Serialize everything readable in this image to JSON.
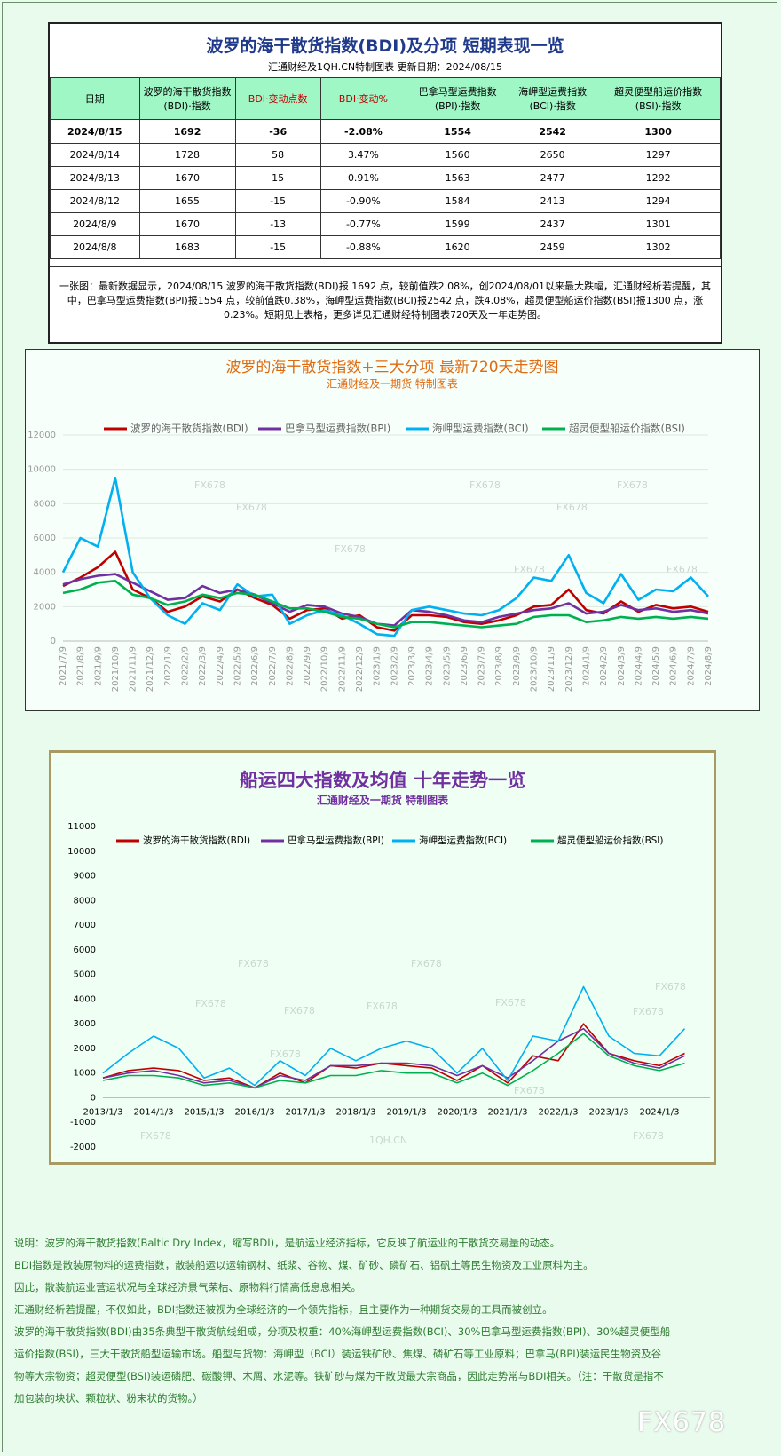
{
  "header": {
    "title": "波罗的海干散货指数(BDI)及分项  短期表现一览",
    "subtitle": "汇通财经及1QH.CN特制图表     更新日期：2024/08/15"
  },
  "table": {
    "columns": [
      "日期",
      "波罗的海干散货指数\n(BDI)·指数",
      "BDI·变动点数",
      "BDI·变动%",
      "巴拿马型运费指数\n(BPI)·指数",
      "海岬型运费指数\n(BCI)·指数",
      "超灵便型船运价指数\n(BSI)·指数"
    ],
    "rows": [
      [
        "2024/8/15",
        "1692",
        "-36",
        "-2.08%",
        "1554",
        "2542",
        "1300"
      ],
      [
        "2024/8/14",
        "1728",
        "58",
        "3.47%",
        "1560",
        "2650",
        "1297"
      ],
      [
        "2024/8/13",
        "1670",
        "15",
        "0.91%",
        "1563",
        "2477",
        "1292"
      ],
      [
        "2024/8/12",
        "1655",
        "-15",
        "-0.90%",
        "1584",
        "2413",
        "1294"
      ],
      [
        "2024/8/9",
        "1670",
        "-13",
        "-0.77%",
        "1599",
        "2437",
        "1301"
      ],
      [
        "2024/8/8",
        "1683",
        "-15",
        "-0.88%",
        "1620",
        "2459",
        "1302"
      ]
    ],
    "note": "一张图：最新数据显示，2024/08/15 波罗的海干散货指数(BDI)报 1692 点，较前值跌2.08%，创2024/08/01以来最大跌幅，汇通财经析若提醒，其中，巴拿马型运费指数(BPI)报1554 点，较前值跌0.38%，海岬型运费指数(BCI)报2542 点，跌4.08%，超灵便型船运价指数(BSI)报1300 点，涨0.23%。短期见上表格，更多详见汇通财经特制图表720天及十年走势图。"
  },
  "chart_data": [
    {
      "type": "line",
      "title": "波罗的海干散货指数+三大分项  最新720天走势图",
      "subtitle": "汇通财经及一期货  特制图表",
      "grid": true,
      "legend": "top",
      "categories": [
        "2021/7/9",
        "2021/8/9",
        "2021/9/9",
        "2021/10/9",
        "2021/11/9",
        "2021/12/9",
        "2022/1/9",
        "2022/2/9",
        "2022/3/9",
        "2022/4/9",
        "2022/5/9",
        "2022/6/9",
        "2022/7/9",
        "2022/8/9",
        "2022/9/9",
        "2022/10/9",
        "2022/11/9",
        "2022/12/9",
        "2023/1/9",
        "2023/2/9",
        "2023/3/9",
        "2023/4/9",
        "2023/5/9",
        "2023/6/9",
        "2023/7/9",
        "2023/8/9",
        "2023/9/9",
        "2023/10/9",
        "2023/11/9",
        "2023/12/9",
        "2024/1/9",
        "2024/2/9",
        "2024/3/9",
        "2024/4/9",
        "2024/5/9",
        "2024/6/9",
        "2024/7/9",
        "2024/8/9"
      ],
      "ylim": [
        0,
        12000
      ],
      "yticks": [
        0,
        2000,
        4000,
        6000,
        8000,
        10000,
        12000
      ],
      "series": [
        {
          "name": "波罗的海干散货指数(BDI)",
          "color": "#c00000",
          "values": [
            3200,
            3700,
            4300,
            5200,
            3000,
            2500,
            1700,
            2000,
            2600,
            2300,
            3000,
            2500,
            2100,
            1300,
            1800,
            1900,
            1300,
            1500,
            800,
            600,
            1500,
            1500,
            1400,
            1100,
            1000,
            1200,
            1500,
            2000,
            2100,
            3000,
            1800,
            1600,
            2300,
            1700,
            2100,
            1900,
            2000,
            1700
          ]
        },
        {
          "name": "巴拿马型运费指数(BPI)",
          "color": "#7030a0",
          "values": [
            3300,
            3600,
            3800,
            3900,
            3400,
            2900,
            2400,
            2500,
            3200,
            2800,
            3000,
            2700,
            2200,
            1700,
            2100,
            2000,
            1600,
            1400,
            1000,
            900,
            1800,
            1700,
            1500,
            1200,
            1100,
            1400,
            1600,
            1800,
            1900,
            2200,
            1600,
            1700,
            2100,
            1800,
            1900,
            1700,
            1800,
            1600
          ]
        },
        {
          "name": "海岬型运费指数(BCI)",
          "color": "#00b0f0",
          "values": [
            4000,
            6000,
            5500,
            9500,
            4000,
            2500,
            1500,
            1000,
            2200,
            1800,
            3300,
            2600,
            2700,
            1000,
            1500,
            1800,
            1500,
            1000,
            400,
            300,
            1800,
            2000,
            1800,
            1600,
            1500,
            1800,
            2500,
            3700,
            3500,
            5000,
            2800,
            2200,
            3900,
            2400,
            3000,
            2900,
            3700,
            2600
          ]
        },
        {
          "name": "超灵便型船运价指数(BSI)",
          "color": "#00b050",
          "values": [
            2800,
            3000,
            3400,
            3500,
            2700,
            2500,
            2100,
            2300,
            2700,
            2500,
            2800,
            2700,
            2300,
            1900,
            1900,
            1700,
            1400,
            1300,
            1000,
            800,
            1100,
            1100,
            1000,
            900,
            800,
            900,
            1000,
            1400,
            1500,
            1500,
            1100,
            1200,
            1400,
            1300,
            1400,
            1300,
            1400,
            1300
          ]
        }
      ]
    },
    {
      "type": "line",
      "title": "船运四大指数及均值 十年走势一览",
      "subtitle": "汇通财经及一期货 特制图表",
      "grid": false,
      "legend": "top",
      "categories": [
        "2013/1/3",
        null,
        "2014/1/3",
        null,
        "2015/1/3",
        null,
        "2016/1/3",
        null,
        "2017/1/3",
        null,
        "2018/1/3",
        null,
        "2019/1/3",
        null,
        "2020/1/3",
        null,
        "2021/1/3",
        null,
        "2022/1/3",
        null,
        "2023/1/3",
        null,
        "2024/1/3",
        null
      ],
      "ylim": [
        -2000,
        11000
      ],
      "yticks": [
        -2000,
        -1000,
        0,
        1000,
        2000,
        3000,
        4000,
        5000,
        6000,
        7000,
        8000,
        9000,
        10000,
        11000
      ],
      "series": [
        {
          "name": "波罗的海干散货指数(BDI)",
          "color": "#c00000",
          "values": [
            800,
            1100,
            1200,
            1100,
            700,
            800,
            400,
            1000,
            600,
            1300,
            1200,
            1400,
            1300,
            1200,
            700,
            1300,
            600,
            1700,
            1500,
            3000,
            1800,
            1500,
            1300,
            1800
          ]
        },
        {
          "name": "巴拿马型运费指数(BPI)",
          "color": "#7030a0",
          "values": [
            800,
            1000,
            1100,
            900,
            600,
            700,
            400,
            900,
            700,
            1300,
            1300,
            1400,
            1400,
            1300,
            900,
            1300,
            800,
            1500,
            2300,
            2800,
            1800,
            1400,
            1200,
            1700
          ]
        },
        {
          "name": "海岬型运费指数(BCI)",
          "color": "#00b0f0",
          "values": [
            1000,
            1800,
            2500,
            2000,
            800,
            1200,
            500,
            1500,
            900,
            2000,
            1500,
            2000,
            2300,
            2000,
            1000,
            2000,
            700,
            2500,
            2300,
            4500,
            2500,
            1800,
            1700,
            2800
          ]
        },
        {
          "name": "超灵便型船运价指数(BSI)",
          "color": "#00b050",
          "values": [
            700,
            900,
            900,
            800,
            500,
            600,
            400,
            700,
            600,
            900,
            900,
            1100,
            1000,
            1000,
            600,
            1000,
            500,
            1100,
            1800,
            2600,
            1700,
            1300,
            1100,
            1400
          ]
        }
      ]
    }
  ],
  "watermark": "FX678",
  "watermark2": "1QH.CN",
  "notes": [
    "说明：波罗的海干散货指数(Baltic Dry Index，缩写BDI)，是航运业经济指标，它反映了航运业的干散货交易量的动态。",
    "BDI指数是散装原物料的运费指数，散装船运以运输钢材、纸浆、谷物、煤、矿砂、磷矿石、铝矾土等民生物资及工业原料为主。",
    "因此，散装航运业营运状况与全球经济景气荣枯、原物料行情高低息息相关。",
    "汇通财经析若提醒，不仅如此，BDI指数还被视为全球经济的一个领先指标，且主要作为一种期货交易的工具而被创立。",
    "波罗的海干散货指数(BDI)由35条典型干散货航线组成，分项及权重：40%海岬型运费指数(BCI)、30%巴拿马型运费指数(BPI)、30%超灵便型船运价指数(BSI)，三大干散货船型运输市场。船型与货物：海岬型（BCI）装运铁矿砂、焦煤、磷矿石等工业原料；巴拿马(BPI)装运民生物资及谷物等大宗物资；超灵便型(BSI)装运磷肥、碳酸钾、木屑、水泥等。铁矿砂与煤为干散货最大宗商品，因此走势常与BDI相关。（注：干散货是指不加包装的块状、颗粒状、粉末状的货物。）"
  ]
}
